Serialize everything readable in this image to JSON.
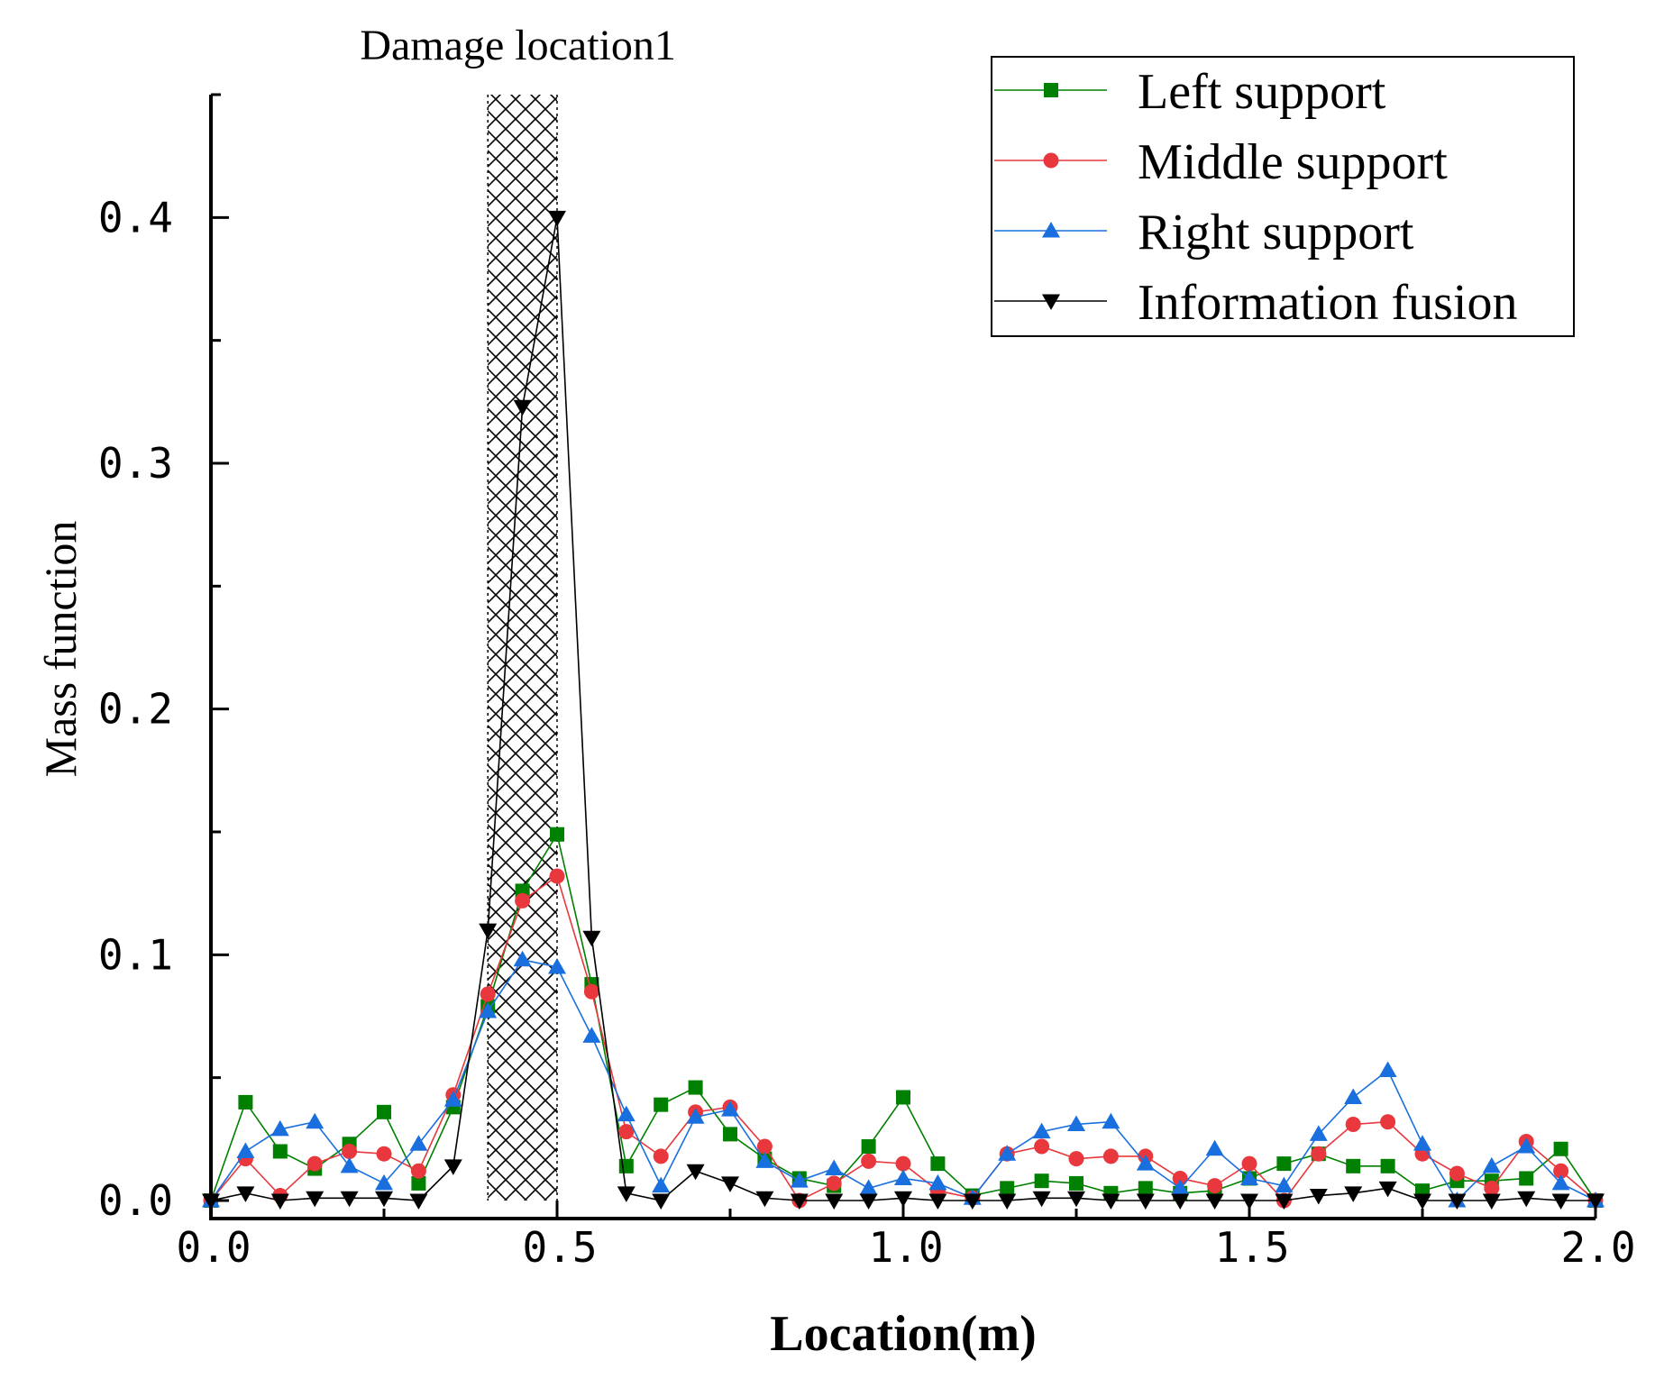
{
  "chart_data": {
    "type": "line",
    "title": "",
    "xlabel": "Location(m)",
    "ylabel": "Mass function",
    "xlim": [
      0.0,
      2.0
    ],
    "ylim": [
      0.0,
      0.45
    ],
    "xticks": [
      0.0,
      0.5,
      1.0,
      1.5,
      2.0
    ],
    "xtick_labels": [
      "0.0",
      "0.5",
      "1.0",
      "1.5",
      "2.0"
    ],
    "yticks": [
      0.0,
      0.1,
      0.2,
      0.3,
      0.4
    ],
    "ytick_labels": [
      "0.0",
      "0.1",
      "0.2",
      "0.3",
      "0.4"
    ],
    "grid": false,
    "legend_position": "top-right",
    "annotation": {
      "text": "Damage location1",
      "x_range": [
        0.4,
        0.5
      ],
      "pattern": "cross-hatch"
    },
    "x": [
      0.0,
      0.05,
      0.1,
      0.15,
      0.2,
      0.25,
      0.3,
      0.35,
      0.4,
      0.45,
      0.5,
      0.55,
      0.6,
      0.65,
      0.7,
      0.75,
      0.8,
      0.85,
      0.9,
      0.95,
      1.0,
      1.05,
      1.1,
      1.15,
      1.2,
      1.25,
      1.3,
      1.35,
      1.4,
      1.45,
      1.5,
      1.55,
      1.6,
      1.65,
      1.7,
      1.75,
      1.8,
      1.85,
      1.9,
      1.95,
      2.0
    ],
    "series": [
      {
        "name": "Left support",
        "color": "#008000",
        "marker": "square",
        "values": [
          0.0,
          0.04,
          0.02,
          0.013,
          0.023,
          0.036,
          0.007,
          0.038,
          0.079,
          0.126,
          0.149,
          0.088,
          0.014,
          0.039,
          0.046,
          0.027,
          0.017,
          0.009,
          0.006,
          0.022,
          0.042,
          0.015,
          0.002,
          0.005,
          0.008,
          0.007,
          0.003,
          0.005,
          0.003,
          0.004,
          0.009,
          0.015,
          0.019,
          0.014,
          0.014,
          0.004,
          0.008,
          0.008,
          0.009,
          0.021,
          0.0
        ]
      },
      {
        "name": "Middle support",
        "color": "#e8383d",
        "marker": "circle",
        "values": [
          0.0,
          0.017,
          0.002,
          0.015,
          0.02,
          0.019,
          0.012,
          0.043,
          0.084,
          0.122,
          0.132,
          0.085,
          0.028,
          0.018,
          0.036,
          0.038,
          0.022,
          0.0,
          0.007,
          0.016,
          0.015,
          0.004,
          0.001,
          0.019,
          0.022,
          0.017,
          0.018,
          0.018,
          0.009,
          0.006,
          0.015,
          0.0,
          0.019,
          0.031,
          0.032,
          0.019,
          0.011,
          0.005,
          0.024,
          0.012,
          0.0
        ]
      },
      {
        "name": "Right support",
        "color": "#1a6fdf",
        "marker": "triangle-up",
        "values": [
          0.0,
          0.02,
          0.029,
          0.032,
          0.014,
          0.007,
          0.023,
          0.041,
          0.077,
          0.098,
          0.095,
          0.067,
          0.035,
          0.006,
          0.034,
          0.037,
          0.016,
          0.008,
          0.013,
          0.005,
          0.009,
          0.007,
          0.001,
          0.019,
          0.028,
          0.031,
          0.032,
          0.015,
          0.005,
          0.021,
          0.009,
          0.006,
          0.027,
          0.042,
          0.053,
          0.023,
          0.0,
          0.014,
          0.022,
          0.007,
          0.0
        ]
      },
      {
        "name": "Information fusion",
        "color": "#000000",
        "marker": "triangle-down",
        "values": [
          0.0,
          0.003,
          0.0,
          0.001,
          0.001,
          0.001,
          0.0,
          0.014,
          0.11,
          0.323,
          0.4,
          0.107,
          0.003,
          0.0,
          0.012,
          0.007,
          0.001,
          0.0,
          0.0,
          0.0,
          0.001,
          0.0,
          0.0,
          0.0,
          0.001,
          0.001,
          0.0,
          0.0,
          0.0,
          0.0,
          0.0,
          0.0,
          0.002,
          0.003,
          0.005,
          0.0,
          0.0,
          0.0,
          0.001,
          0.0,
          0.0
        ]
      }
    ]
  }
}
